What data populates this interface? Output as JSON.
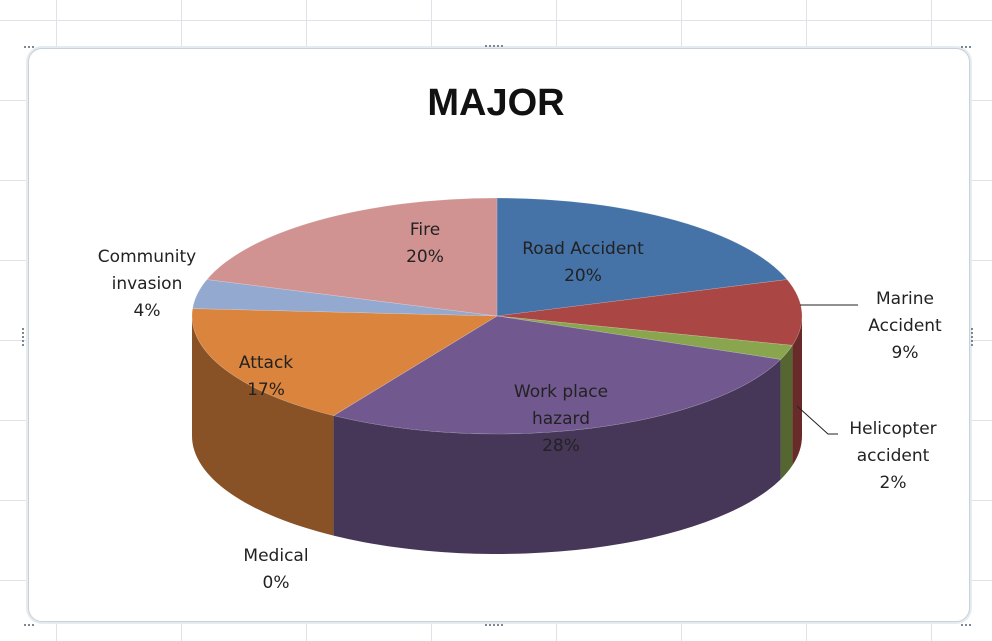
{
  "chart_data": {
    "type": "pie",
    "title": "MAJOR",
    "slices": [
      {
        "name": "Road Accident",
        "label": [
          "Road Accident"
        ],
        "value": 20,
        "percent": "20%",
        "color": "#4572a7"
      },
      {
        "name": "Marine Accident",
        "label": [
          "Marine",
          "Accident"
        ],
        "value": 9,
        "percent": "9%",
        "color": "#aa4643"
      },
      {
        "name": "Helicopter accident",
        "label": [
          "Helicopter",
          "accident"
        ],
        "value": 2,
        "percent": "2%",
        "color": "#89a54e"
      },
      {
        "name": "Work place hazard",
        "label": [
          "Work place",
          "hazard"
        ],
        "value": 28,
        "percent": "28%",
        "color": "#71588f"
      },
      {
        "name": "Medical",
        "label": [
          "Medical"
        ],
        "value": 0,
        "percent": "0%",
        "color": "#4198af"
      },
      {
        "name": "Attack",
        "label": [
          "Attack"
        ],
        "value": 17,
        "percent": "17%",
        "color": "#db843d"
      },
      {
        "name": "Community invasion",
        "label": [
          "Community",
          "invasion"
        ],
        "value": 4,
        "percent": "4%",
        "color": "#93a9cf"
      },
      {
        "name": "Fire",
        "label": [
          "Fire"
        ],
        "value": 20,
        "percent": "20%",
        "color": "#d19392"
      }
    ],
    "legend": "none",
    "style": "3d-pie"
  }
}
